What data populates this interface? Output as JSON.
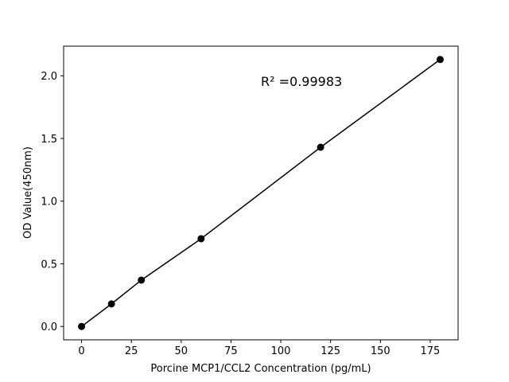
{
  "chart_data": {
    "type": "line",
    "xlabel": "Porcine MCP1/CCL2 Concentration (pg/mL)",
    "ylabel": "OD Value(450nm)",
    "annotation": "R² =0.99983",
    "x": [
      0,
      15,
      30,
      60,
      120,
      180
    ],
    "series": [
      {
        "color": "#000000",
        "values": [
          0,
          0.18,
          0.37,
          0.7,
          1.43,
          2.13
        ]
      }
    ],
    "xlim": [
      -9,
      189
    ],
    "ylim": [
      -0.1065,
      2.2365
    ],
    "xticks": [
      0,
      25,
      50,
      75,
      100,
      125,
      150,
      175
    ],
    "yticks": [
      {
        "value": 0,
        "label": "0.0"
      },
      0.5,
      {
        "value": 1,
        "label": "1.0"
      },
      1.5,
      {
        "value": 2,
        "label": "2.0"
      }
    ],
    "grid": false
  }
}
